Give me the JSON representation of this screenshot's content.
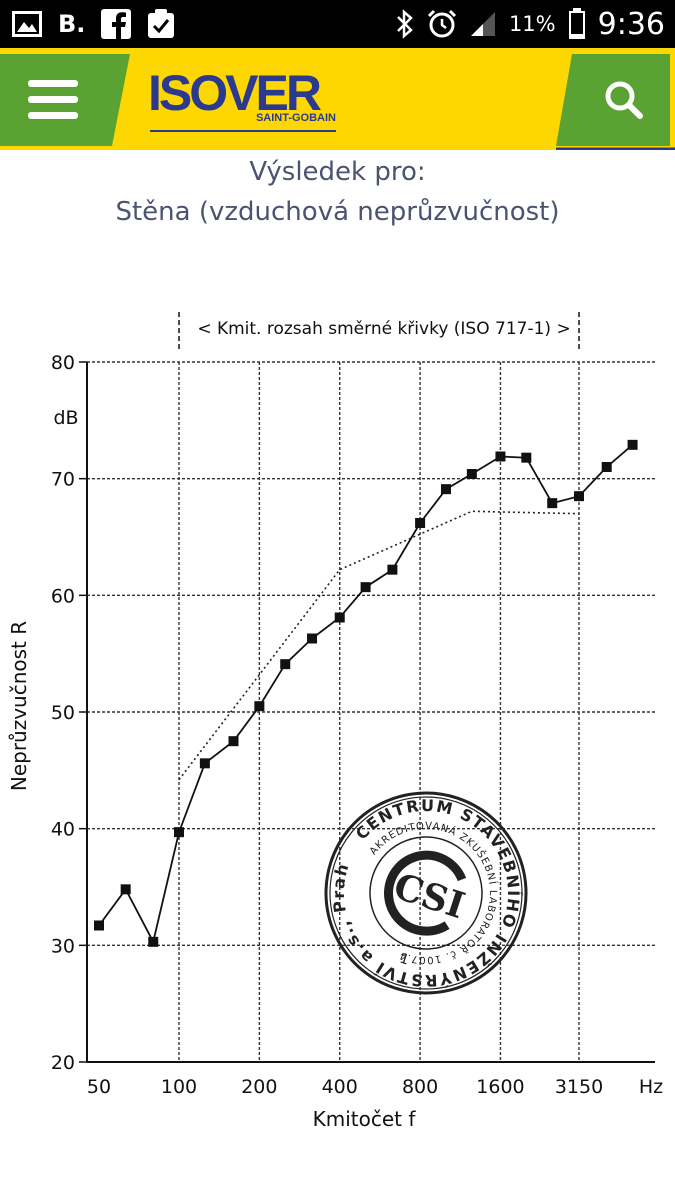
{
  "status_bar": {
    "left_letter": "B.",
    "battery_percent": "11%",
    "time": "9:36",
    "icons_left": [
      "image-icon",
      "facebook-icon",
      "clipboard-check-icon"
    ],
    "icons_right": [
      "bluetooth-icon",
      "alarm-icon",
      "signal-icon",
      "battery-icon"
    ]
  },
  "header": {
    "menu_icon": "hamburger-menu-icon",
    "search_icon": "search-icon",
    "logo_text": "ISOVER",
    "logo_subtext": "SAINT-GOBAIN",
    "colors": {
      "bar": "#ffd700",
      "accent": "#5aa332",
      "logo": "#2b3a8f"
    }
  },
  "result": {
    "line1": "Výsledek pro:",
    "line2": "Stěna (vzduchová neprůzvučnost)"
  },
  "chart_data": {
    "type": "line",
    "title": "< Kmit. rozsah směrné křivky (ISO 717-1) >",
    "xlabel": "Kmitočet  f",
    "ylabel": "Neprůzvučnost  R",
    "yunit": "dB",
    "xunit": "Hz",
    "ylim": [
      20,
      80
    ],
    "yticks": [
      20,
      30,
      40,
      50,
      60,
      70,
      80
    ],
    "x_tick_labels": [
      "50",
      "100",
      "200",
      "400",
      "800",
      "1600",
      "3150"
    ],
    "x_tick_freqs": [
      50,
      100,
      200,
      400,
      800,
      1600,
      3150
    ],
    "grid": true,
    "series": [
      {
        "style": "solid-with-square-markers",
        "x": [
          50,
          63,
          80,
          100,
          125,
          160,
          200,
          250,
          315,
          400,
          500,
          630,
          800,
          1000,
          1250,
          1600,
          2000,
          2500,
          3150,
          4000,
          5000
        ],
        "values": [
          31.7,
          34.8,
          30.3,
          39.7,
          45.6,
          47.5,
          50.5,
          54.1,
          56.3,
          58.1,
          60.7,
          62.2,
          66.2,
          69.1,
          70.4,
          71.9,
          71.8,
          67.9,
          68.5,
          71.0,
          72.9
        ]
      },
      {
        "style": "dotted",
        "x": [
          100,
          400,
          1250,
          3150
        ],
        "values": [
          44.2,
          62.2,
          67.2,
          67.0
        ]
      }
    ],
    "stamp": {
      "ring_text_top": "CENTRUM STAVEBNÍHO INŽENÝRSTVÍ a.s., Praha",
      "ring_text_inner": "AKREDITOVANÁ ZKUŠEBNÍ LABORATOŘ č. 1007.4",
      "logo_text": "CSI",
      "number": "1"
    }
  }
}
